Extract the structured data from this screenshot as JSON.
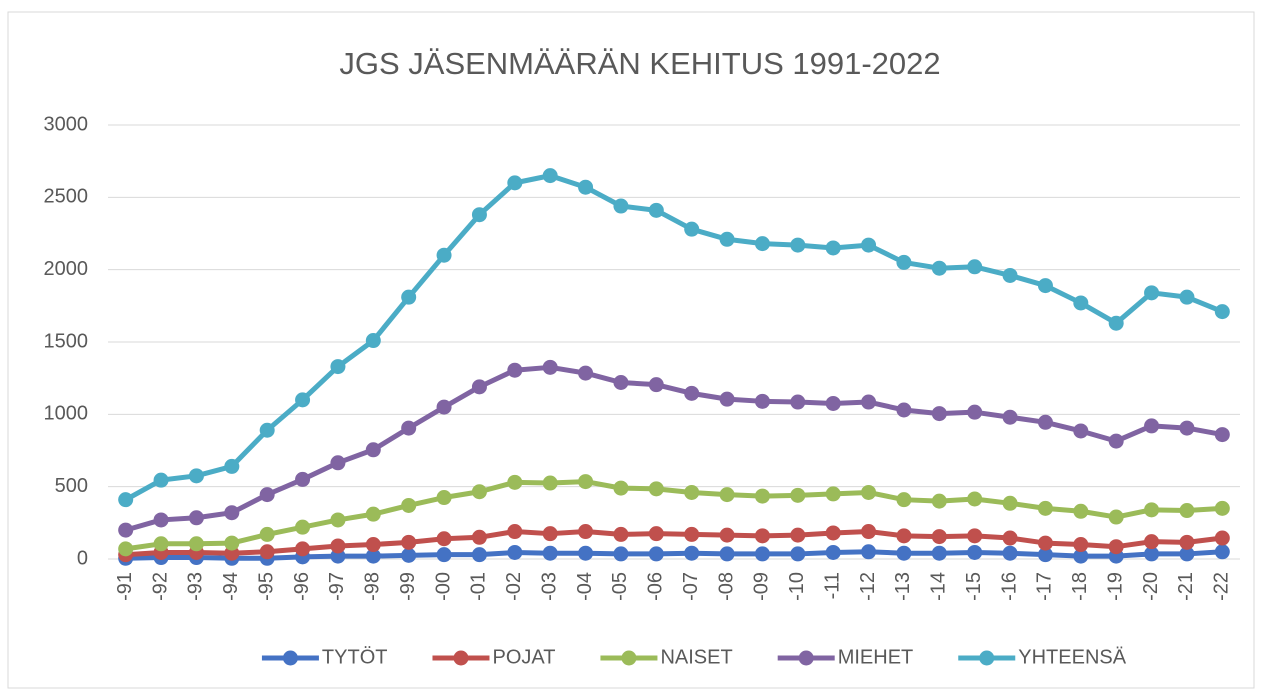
{
  "chart_data": {
    "type": "line",
    "title": "JGS JÄSENMÄÄRÄN KEHITUS 1991-2022",
    "categories": [
      "-91",
      "-92",
      "-93",
      "-94",
      "-95",
      "-96",
      "-97",
      "-98",
      "-99",
      "-00",
      "-01",
      "-02",
      "-03",
      "-04",
      "-05",
      "-06",
      "-07",
      "-08",
      "-09",
      "-10",
      "-11",
      "-12",
      "-13",
      "-14",
      "-15",
      "-16",
      "-17",
      "-18",
      "-19",
      "-20",
      "-21",
      "-22"
    ],
    "series": [
      {
        "name": "TYTÖT",
        "color": "#4472c4",
        "values": [
          5,
          10,
          10,
          5,
          5,
          15,
          20,
          20,
          25,
          30,
          30,
          45,
          40,
          40,
          35,
          35,
          40,
          35,
          35,
          35,
          45,
          50,
          40,
          40,
          45,
          40,
          30,
          20,
          20,
          35,
          35,
          50
        ]
      },
      {
        "name": "POJAT",
        "color": "#c0504d",
        "values": [
          30,
          45,
          45,
          40,
          50,
          70,
          90,
          100,
          115,
          140,
          150,
          190,
          175,
          190,
          170,
          175,
          170,
          165,
          160,
          165,
          180,
          190,
          160,
          155,
          160,
          145,
          110,
          100,
          85,
          120,
          115,
          145
        ]
      },
      {
        "name": "NAISET",
        "color": "#9bbb59",
        "values": [
          70,
          105,
          105,
          110,
          170,
          220,
          270,
          310,
          370,
          425,
          465,
          530,
          525,
          535,
          490,
          485,
          460,
          445,
          435,
          440,
          450,
          460,
          410,
          400,
          415,
          385,
          350,
          330,
          290,
          340,
          335,
          350
        ]
      },
      {
        "name": "MIEHET",
        "color": "#8064a2",
        "values": [
          200,
          270,
          285,
          320,
          445,
          550,
          665,
          755,
          905,
          1050,
          1190,
          1305,
          1325,
          1285,
          1220,
          1205,
          1145,
          1105,
          1090,
          1085,
          1075,
          1085,
          1030,
          1005,
          1015,
          980,
          945,
          885,
          815,
          920,
          905,
          860
        ]
      },
      {
        "name": "YHTEENSÄ",
        "color": "#4bacc6",
        "values": [
          410,
          545,
          575,
          640,
          890,
          1100,
          1330,
          1510,
          1810,
          2100,
          2380,
          2600,
          2650,
          2570,
          2440,
          2410,
          2280,
          2210,
          2180,
          2170,
          2150,
          2170,
          2050,
          2010,
          2020,
          1960,
          1890,
          1770,
          1630,
          1840,
          1810,
          1710
        ]
      }
    ],
    "ylim": [
      0,
      3000
    ],
    "yticks": [
      0,
      500,
      1000,
      1500,
      2000,
      2500,
      3000
    ],
    "grid": true,
    "legend": "bottom"
  }
}
